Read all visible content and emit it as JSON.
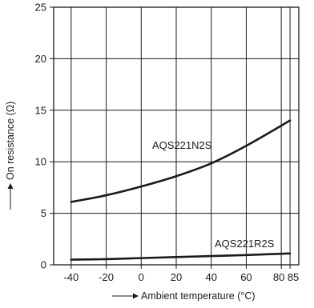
{
  "chart_data": {
    "type": "line",
    "title": "",
    "xlabel": "Ambient temperature (°C)",
    "ylabel": "On resistance (Ω)",
    "xlim": [
      -50,
      90
    ],
    "ylim": [
      0,
      25
    ],
    "x_ticks": [
      -40,
      -20,
      0,
      20,
      40,
      60,
      80,
      85
    ],
    "x_tick_labels": [
      "-40",
      "-20",
      "0",
      "20",
      "40",
      "60",
      "80",
      "85"
    ],
    "y_ticks": [
      0,
      5,
      10,
      15,
      20,
      25
    ],
    "y_tick_labels": [
      "0",
      "5",
      "10",
      "15",
      "20",
      "25"
    ],
    "grid": true,
    "series": [
      {
        "name": "AQS221N2S",
        "x": [
          -40,
          -20,
          0,
          20,
          40,
          60,
          85
        ],
        "y": [
          6.1,
          6.75,
          7.6,
          8.6,
          9.85,
          11.55,
          14.0
        ]
      },
      {
        "name": "AQS221R2S",
        "x": [
          -40,
          -20,
          0,
          20,
          40,
          60,
          85
        ],
        "y": [
          0.5,
          0.55,
          0.65,
          0.75,
          0.85,
          0.95,
          1.1
        ]
      }
    ],
    "colors": {
      "line": "#1a1a1a",
      "grid": "#1a1a1a",
      "text": "#1a1a1a"
    }
  }
}
